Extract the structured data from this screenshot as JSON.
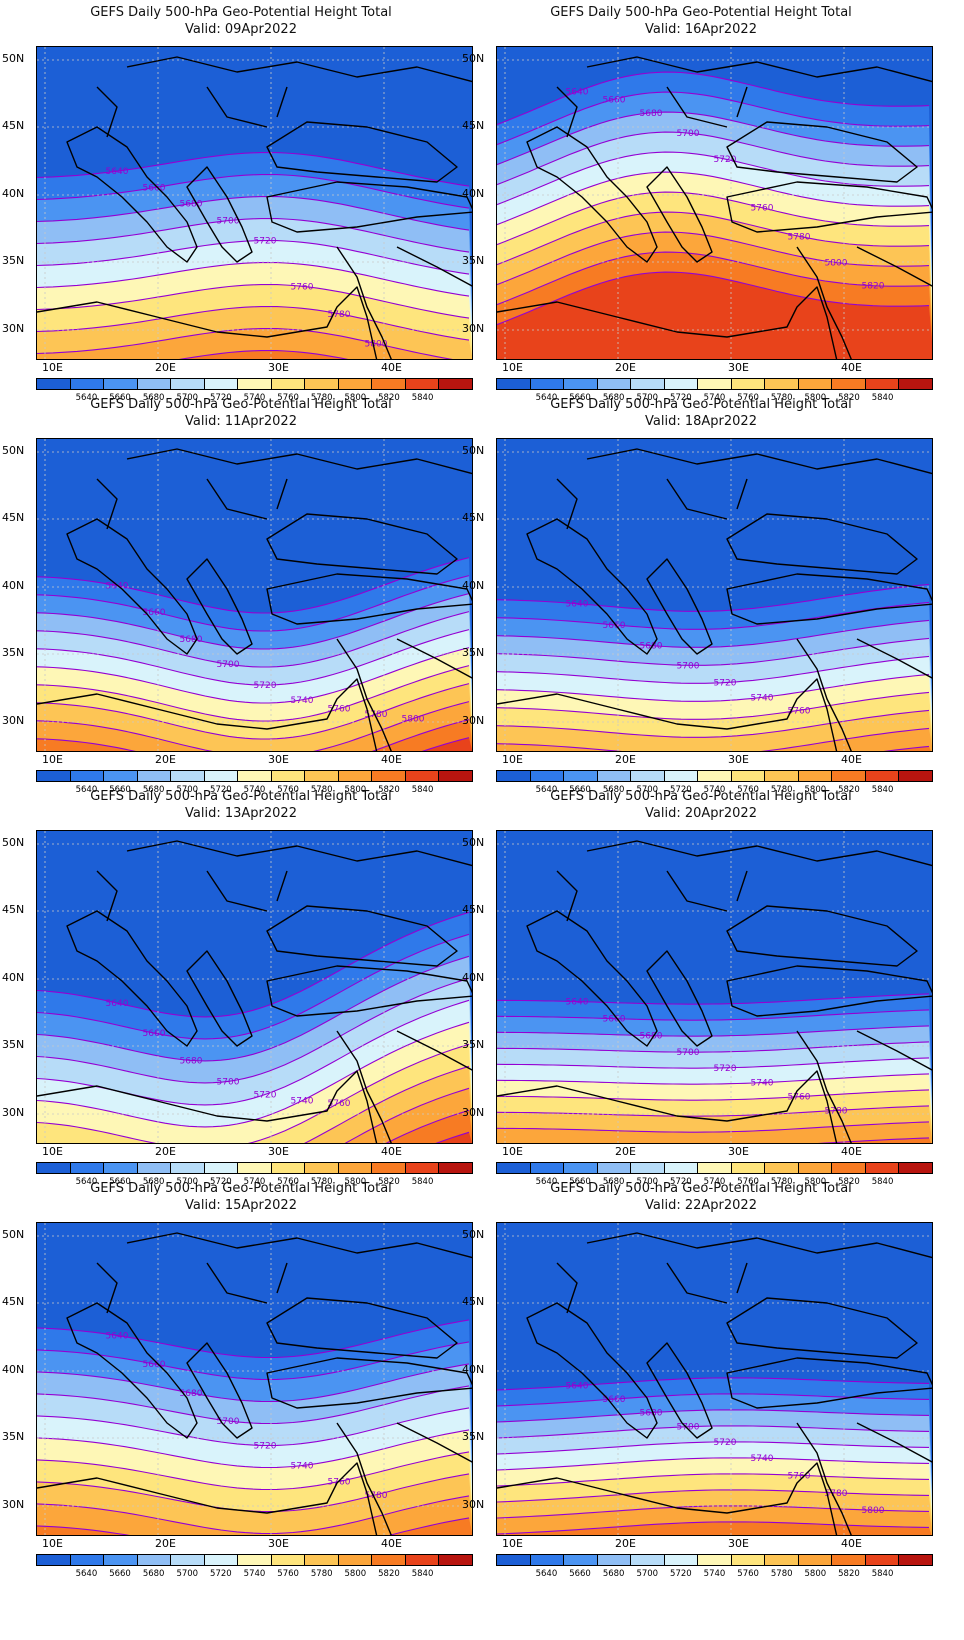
{
  "title_line1": "GEFS Daily 500-hPa Geo-Potential Height Total",
  "valid_prefix": "Valid: ",
  "lat_ticks": [
    "50N",
    "45N",
    "40N",
    "35N",
    "30N"
  ],
  "lon_ticks": [
    "10E",
    "20E",
    "30E",
    "40E"
  ],
  "colorbar": {
    "levels": [
      "5640",
      "5660",
      "5680",
      "5700",
      "5720",
      "5740",
      "5760",
      "5780",
      "5800",
      "5820",
      "5840"
    ],
    "colors": [
      "#1c5fd6",
      "#2f79ea",
      "#4b94f2",
      "#8fbef5",
      "#b7dcf8",
      "#d9f3fb",
      "#fef7b6",
      "#fee57d",
      "#fdc555",
      "#fca63b",
      "#f77b23",
      "#e8431b",
      "#b8150f"
    ]
  },
  "contour_color": "#9400d3",
  "coast_color": "#000000",
  "panels": [
    {
      "valid": "09Apr2022",
      "contour_labels": [
        "5640",
        "5660",
        "5680",
        "5700",
        "5720",
        "5760",
        "5780",
        "5800"
      ]
    },
    {
      "valid": "16Apr2022",
      "contour_labels": [
        "5640",
        "5660",
        "5680",
        "5700",
        "5720",
        "5760",
        "5780",
        "5800",
        "5820"
      ]
    },
    {
      "valid": "11Apr2022",
      "contour_labels": [
        "5640",
        "5660",
        "5680",
        "5700",
        "5720",
        "5740",
        "5760",
        "5780",
        "5800"
      ]
    },
    {
      "valid": "18Apr2022",
      "contour_labels": [
        "5640",
        "5660",
        "5680",
        "5700",
        "5720",
        "5740",
        "5760"
      ]
    },
    {
      "valid": "13Apr2022",
      "contour_labels": [
        "5640",
        "5660",
        "5680",
        "5700",
        "5720",
        "5740",
        "5760"
      ]
    },
    {
      "valid": "20Apr2022",
      "contour_labels": [
        "5640",
        "5660",
        "5680",
        "5700",
        "5720",
        "5740",
        "5760",
        "5780"
      ]
    },
    {
      "valid": "15Apr2022",
      "contour_labels": [
        "5640",
        "5660",
        "5680",
        "5700",
        "5720",
        "5740",
        "5760",
        "5780"
      ]
    },
    {
      "valid": "22Apr2022",
      "contour_labels": [
        "5640",
        "5660",
        "5680",
        "5700",
        "5720",
        "5740",
        "5760",
        "5780",
        "5800"
      ]
    }
  ]
}
